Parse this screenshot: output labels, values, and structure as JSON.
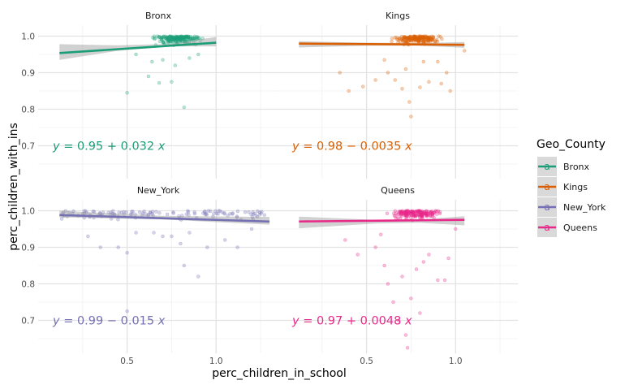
{
  "chart_data": {
    "type": "scatter",
    "facet_variable": "Geo_County",
    "xlabel": "perc_children_in_school",
    "ylabel": "perc_children_with_ins",
    "x_ticks": [
      0.5,
      1.0
    ],
    "x_tick_labels": [
      "0.5",
      "1.0"
    ],
    "y_ticks": [
      0.7,
      0.8,
      0.9,
      1.0
    ],
    "y_tick_labels": [
      "0.7",
      "0.8",
      "0.9",
      "1.0"
    ],
    "xlim": [
      0.0,
      1.35
    ],
    "ylim": [
      0.61,
      1.03
    ],
    "legend": {
      "title": "Geo_County",
      "position": "right",
      "entries": [
        "Bronx",
        "Kings",
        "New_York",
        "Queens"
      ],
      "key_glyph": "a"
    },
    "grid": true,
    "panels": [
      {
        "name": "Bronx",
        "color": "#1B9E77",
        "x_range": [
          0.12,
          1.0
        ],
        "fit": {
          "intercept": 0.95,
          "slope": 0.032
        },
        "se_band": [
          [
            0.12,
            0.935,
            0.978
          ],
          [
            0.45,
            0.96,
            0.975
          ],
          [
            0.75,
            0.972,
            0.979
          ],
          [
            1.0,
            0.972,
            0.998
          ]
        ],
        "equation": {
          "y": "y",
          "eq": "=",
          "intercept": "0.95",
          "sign": "+",
          "slope": "0.032",
          "x": "x"
        },
        "outliers": [
          [
            0.5,
            0.845
          ],
          [
            0.62,
            0.89
          ],
          [
            0.68,
            0.872
          ],
          [
            0.7,
            0.935
          ],
          [
            0.75,
            0.875
          ],
          [
            0.77,
            0.92
          ],
          [
            0.82,
            0.805
          ],
          [
            0.85,
            0.94
          ],
          [
            0.9,
            0.95
          ],
          [
            0.64,
            0.93
          ],
          [
            0.55,
            0.95
          ]
        ]
      },
      {
        "name": "Kings",
        "color": "#D95F02",
        "x_range": [
          0.12,
          1.05
        ],
        "fit": {
          "intercept": 0.98,
          "slope": -0.0035
        },
        "se_band": [
          [
            0.12,
            0.969,
            0.986
          ],
          [
            0.5,
            0.974,
            0.982
          ],
          [
            0.8,
            0.974,
            0.981
          ],
          [
            1.05,
            0.968,
            0.984
          ]
        ],
        "equation": {
          "y": "y",
          "eq": "=",
          "intercept": "0.98",
          "sign": "−",
          "slope": "0.0035",
          "x": "x"
        },
        "outliers": [
          [
            0.35,
            0.9
          ],
          [
            0.4,
            0.85
          ],
          [
            0.48,
            0.862
          ],
          [
            0.55,
            0.88
          ],
          [
            0.62,
            0.9
          ],
          [
            0.66,
            0.88
          ],
          [
            0.7,
            0.856
          ],
          [
            0.72,
            0.91
          ],
          [
            0.74,
            0.82
          ],
          [
            0.75,
            0.78
          ],
          [
            0.8,
            0.86
          ],
          [
            0.85,
            0.875
          ],
          [
            0.9,
            0.93
          ],
          [
            0.95,
            0.9
          ],
          [
            0.97,
            0.85
          ],
          [
            0.92,
            0.87
          ],
          [
            0.6,
            0.935
          ],
          [
            0.82,
            0.93
          ],
          [
            1.05,
            0.96
          ]
        ]
      },
      {
        "name": "New_York",
        "color": "#7570B3",
        "x_range": [
          0.12,
          1.3
        ],
        "fit": {
          "intercept": 0.99,
          "slope": -0.015
        },
        "se_band": [
          [
            0.12,
            0.982,
            1.0
          ],
          [
            0.7,
            0.976,
            0.986
          ],
          [
            1.3,
            0.962,
            0.983
          ]
        ],
        "equation": {
          "y": "y",
          "eq": "=",
          "intercept": "0.99",
          "sign": "−",
          "slope": "0.015",
          "x": "x"
        },
        "outliers": [
          [
            0.28,
            0.93
          ],
          [
            0.35,
            0.9
          ],
          [
            0.45,
            0.9
          ],
          [
            0.5,
            0.885
          ],
          [
            0.5,
            0.725
          ],
          [
            0.55,
            0.94
          ],
          [
            0.65,
            0.94
          ],
          [
            0.7,
            0.93
          ],
          [
            0.75,
            0.93
          ],
          [
            0.8,
            0.91
          ],
          [
            0.82,
            0.85
          ],
          [
            0.85,
            0.94
          ],
          [
            0.9,
            0.82
          ],
          [
            0.95,
            0.9
          ],
          [
            1.05,
            0.92
          ],
          [
            1.12,
            0.9
          ],
          [
            1.2,
            0.95
          ]
        ]
      },
      {
        "name": "Queens",
        "color": "#E7298A",
        "x_range": [
          0.12,
          1.05
        ],
        "fit": {
          "intercept": 0.97,
          "slope": 0.0048
        },
        "se_band": [
          [
            0.12,
            0.952,
            0.984
          ],
          [
            0.55,
            0.965,
            0.975
          ],
          [
            0.8,
            0.967,
            0.976
          ],
          [
            1.05,
            0.96,
            0.985
          ]
        ],
        "equation": {
          "y": "y",
          "eq": "=",
          "intercept": "0.97",
          "sign": "+",
          "slope": "0.0048",
          "x": "x"
        },
        "outliers": [
          [
            0.38,
            0.92
          ],
          [
            0.45,
            0.88
          ],
          [
            0.55,
            0.9
          ],
          [
            0.6,
            0.85
          ],
          [
            0.62,
            0.8
          ],
          [
            0.65,
            0.75
          ],
          [
            0.68,
            0.7
          ],
          [
            0.7,
            0.82
          ],
          [
            0.72,
            0.66
          ],
          [
            0.73,
            0.625
          ],
          [
            0.75,
            0.76
          ],
          [
            0.78,
            0.84
          ],
          [
            0.8,
            0.72
          ],
          [
            0.82,
            0.86
          ],
          [
            0.85,
            0.88
          ],
          [
            0.9,
            0.81
          ],
          [
            0.94,
            0.81
          ],
          [
            0.96,
            0.87
          ],
          [
            1.0,
            0.95
          ],
          [
            0.58,
            0.935
          ]
        ]
      }
    ]
  }
}
